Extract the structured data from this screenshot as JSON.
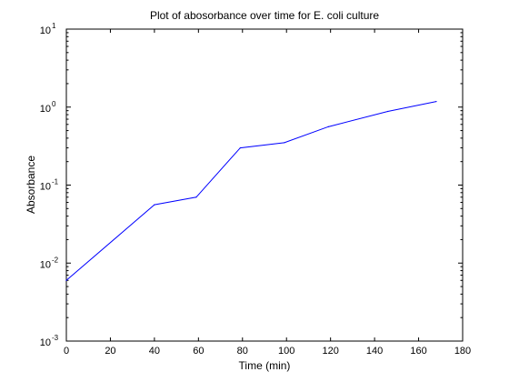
{
  "chart_data": {
    "type": "line",
    "title": "Plot of abosorbance over time for E. coli culture",
    "xlabel": "Time (min)",
    "ylabel": "Absorbance",
    "xlim": [
      0,
      180
    ],
    "ylim": [
      0.001,
      10
    ],
    "yscale": "log",
    "grid": false,
    "x_ticks": [
      0,
      20,
      40,
      60,
      80,
      100,
      120,
      140,
      160,
      180
    ],
    "y_ticks": [
      {
        "base": "10",
        "exp": "-3",
        "value": 0.001
      },
      {
        "base": "10",
        "exp": "-2",
        "value": 0.01
      },
      {
        "base": "10",
        "exp": "-1",
        "value": 0.1
      },
      {
        "base": "10",
        "exp": "0",
        "value": 1
      },
      {
        "base": "10",
        "exp": "1",
        "value": 10
      }
    ],
    "series": [
      {
        "color": "#0000ff",
        "x": [
          0,
          40,
          59,
          79,
          99,
          119,
          146,
          168
        ],
        "y": [
          0.006,
          0.056,
          0.07,
          0.3,
          0.35,
          0.56,
          0.88,
          1.18
        ]
      }
    ]
  }
}
